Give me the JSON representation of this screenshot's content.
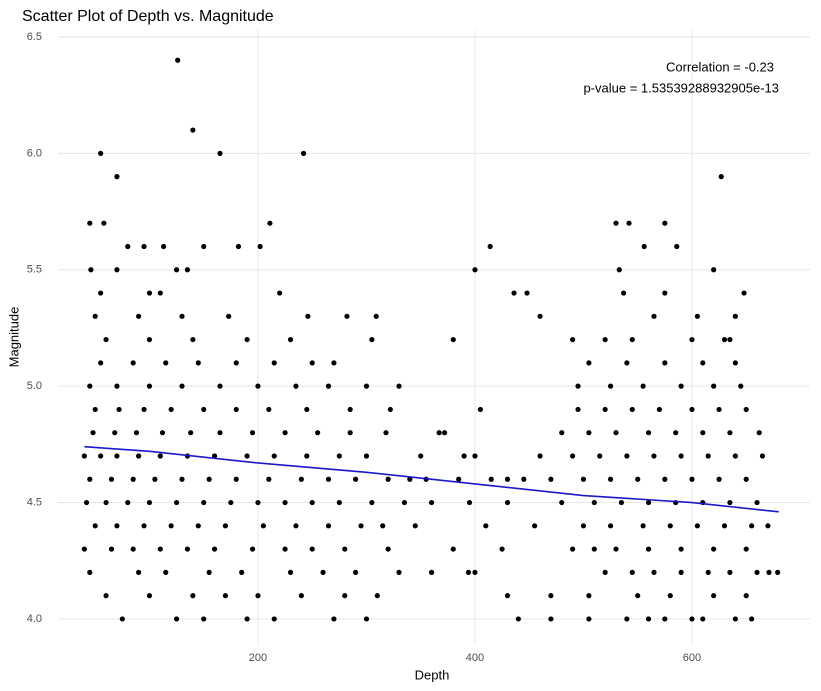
{
  "chart_data": {
    "type": "scatter",
    "title": "Scatter Plot of Depth vs. Magnitude",
    "x_label": "Depth",
    "y_label": "Magnitude",
    "annotations": [
      "Correlation = -0.23",
      "p-value = 1.53539288932905e-13"
    ],
    "color": "#000000",
    "grid": true,
    "xlim": [
      15.7,
      708.8
    ],
    "xticks": [
      200,
      400,
      600
    ],
    "ylim": [
      3.888,
      6.53
    ],
    "yticks": [
      {
        "value": 4,
        "label": "4.0"
      },
      4.5,
      {
        "value": 5,
        "label": "5.0"
      },
      5.5,
      {
        "value": 6,
        "label": "6.0"
      },
      6.5
    ],
    "x": [
      126,
      140,
      55,
      165,
      242,
      70,
      627,
      45,
      58,
      211,
      530,
      542,
      575,
      80,
      95,
      113,
      150,
      182,
      202,
      414,
      556,
      586,
      46,
      70,
      125,
      135,
      400,
      533,
      620,
      55,
      100,
      110,
      220,
      436,
      448,
      537,
      575,
      648,
      50,
      90,
      130,
      173,
      246,
      282,
      309,
      460,
      565,
      605,
      640,
      60,
      100,
      140,
      190,
      230,
      305,
      380,
      490,
      520,
      545,
      600,
      630,
      635,
      55,
      85,
      115,
      145,
      180,
      215,
      250,
      270,
      505,
      540,
      575,
      610,
      640,
      45,
      70,
      100,
      130,
      165,
      200,
      235,
      265,
      300,
      330,
      495,
      525,
      555,
      590,
      620,
      645,
      50,
      72,
      95,
      120,
      150,
      180,
      210,
      245,
      285,
      322,
      405,
      495,
      520,
      545,
      570,
      600,
      625,
      650,
      48,
      68,
      88,
      112,
      138,
      165,
      195,
      225,
      255,
      285,
      318,
      367,
      372,
      480,
      505,
      530,
      560,
      585,
      610,
      635,
      662,
      40,
      55,
      70,
      90,
      110,
      135,
      160,
      190,
      215,
      245,
      275,
      300,
      350,
      390,
      400,
      460,
      490,
      515,
      540,
      565,
      590,
      615,
      640,
      665,
      45,
      65,
      85,
      105,
      130,
      155,
      180,
      210,
      240,
      265,
      290,
      320,
      340,
      355,
      385,
      415,
      430,
      445,
      470,
      500,
      525,
      550,
      575,
      600,
      625,
      650,
      42,
      60,
      80,
      100,
      125,
      150,
      175,
      200,
      225,
      250,
      275,
      305,
      335,
      360,
      395,
      430,
      480,
      510,
      535,
      560,
      585,
      610,
      635,
      660,
      50,
      70,
      95,
      120,
      145,
      170,
      205,
      235,
      265,
      295,
      315,
      345,
      410,
      455,
      500,
      525,
      555,
      580,
      605,
      630,
      655,
      670,
      40,
      65,
      85,
      110,
      135,
      160,
      195,
      225,
      250,
      280,
      320,
      380,
      425,
      490,
      510,
      530,
      560,
      590,
      620,
      650,
      45,
      90,
      115,
      155,
      185,
      230,
      260,
      290,
      330,
      360,
      394,
      400,
      520,
      545,
      565,
      590,
      615,
      635,
      660,
      671,
      679,
      60,
      100,
      140,
      170,
      200,
      240,
      280,
      310,
      430,
      470,
      505,
      550,
      580,
      620,
      650,
      75,
      125,
      150,
      190,
      215,
      270,
      300,
      440,
      470,
      505,
      540,
      560,
      575,
      600,
      610,
      640,
      655
    ],
    "values": [
      6.4,
      6.1,
      6.0,
      6.0,
      6.0,
      5.9,
      5.9,
      5.7,
      5.7,
      5.7,
      5.7,
      5.7,
      5.7,
      5.6,
      5.6,
      5.6,
      5.6,
      5.6,
      5.6,
      5.6,
      5.6,
      5.6,
      5.5,
      5.5,
      5.5,
      5.5,
      5.5,
      5.5,
      5.5,
      5.4,
      5.4,
      5.4,
      5.4,
      5.4,
      5.4,
      5.4,
      5.4,
      5.4,
      5.3,
      5.3,
      5.3,
      5.3,
      5.3,
      5.3,
      5.3,
      5.3,
      5.3,
      5.3,
      5.3,
      5.2,
      5.2,
      5.2,
      5.2,
      5.2,
      5.2,
      5.2,
      5.2,
      5.2,
      5.2,
      5.2,
      5.2,
      5.2,
      5.1,
      5.1,
      5.1,
      5.1,
      5.1,
      5.1,
      5.1,
      5.1,
      5.1,
      5.1,
      5.1,
      5.1,
      5.1,
      5.0,
      5.0,
      5.0,
      5.0,
      5.0,
      5.0,
      5.0,
      5.0,
      5.0,
      5.0,
      5.0,
      5.0,
      5.0,
      5.0,
      5.0,
      5.0,
      4.9,
      4.9,
      4.9,
      4.9,
      4.9,
      4.9,
      4.9,
      4.9,
      4.9,
      4.9,
      4.9,
      4.9,
      4.9,
      4.9,
      4.9,
      4.9,
      4.9,
      4.9,
      4.8,
      4.8,
      4.8,
      4.8,
      4.8,
      4.8,
      4.8,
      4.8,
      4.8,
      4.8,
      4.8,
      4.8,
      4.8,
      4.8,
      4.8,
      4.8,
      4.8,
      4.8,
      4.8,
      4.8,
      4.8,
      4.7,
      4.7,
      4.7,
      4.7,
      4.7,
      4.7,
      4.7,
      4.7,
      4.7,
      4.7,
      4.7,
      4.7,
      4.7,
      4.7,
      4.7,
      4.7,
      4.7,
      4.7,
      4.7,
      4.7,
      4.7,
      4.7,
      4.7,
      4.7,
      4.6,
      4.6,
      4.6,
      4.6,
      4.6,
      4.6,
      4.6,
      4.6,
      4.6,
      4.6,
      4.6,
      4.6,
      4.6,
      4.6,
      4.6,
      4.6,
      4.6,
      4.6,
      4.6,
      4.6,
      4.6,
      4.6,
      4.6,
      4.6,
      4.6,
      4.6,
      4.5,
      4.5,
      4.5,
      4.5,
      4.5,
      4.5,
      4.5,
      4.5,
      4.5,
      4.5,
      4.5,
      4.5,
      4.5,
      4.5,
      4.5,
      4.5,
      4.5,
      4.5,
      4.5,
      4.5,
      4.5,
      4.5,
      4.5,
      4.5,
      4.4,
      4.4,
      4.4,
      4.4,
      4.4,
      4.4,
      4.4,
      4.4,
      4.4,
      4.4,
      4.4,
      4.4,
      4.4,
      4.4,
      4.4,
      4.4,
      4.4,
      4.4,
      4.4,
      4.4,
      4.4,
      4.4,
      4.3,
      4.3,
      4.3,
      4.3,
      4.3,
      4.3,
      4.3,
      4.3,
      4.3,
      4.3,
      4.3,
      4.3,
      4.3,
      4.3,
      4.3,
      4.3,
      4.3,
      4.3,
      4.3,
      4.3,
      4.2,
      4.2,
      4.2,
      4.2,
      4.2,
      4.2,
      4.2,
      4.2,
      4.2,
      4.2,
      4.2,
      4.2,
      4.2,
      4.2,
      4.2,
      4.2,
      4.2,
      4.2,
      4.2,
      4.2,
      4.2,
      4.1,
      4.1,
      4.1,
      4.1,
      4.1,
      4.1,
      4.1,
      4.1,
      4.1,
      4.1,
      4.1,
      4.1,
      4.1,
      4.1,
      4.1,
      4.0,
      4.0,
      4.0,
      4.0,
      4.0,
      4.0,
      4.0,
      4.0,
      4.0,
      4.0,
      4.0,
      4.0,
      4.0,
      4.0,
      4.0,
      4.0,
      4.0
    ],
    "trend": {
      "color": "#1a1acc",
      "x": [
        40,
        100,
        200,
        300,
        400,
        500,
        600,
        680
      ],
      "values": [
        4.74,
        4.72,
        4.67,
        4.63,
        4.58,
        4.53,
        4.5,
        4.46
      ]
    }
  }
}
